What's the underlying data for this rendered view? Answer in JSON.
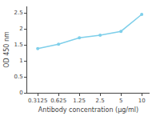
{
  "chart_data": {
    "type": "line",
    "x": [
      0.3125,
      0.625,
      1.25,
      2.5,
      5,
      10
    ],
    "values": [
      1.38,
      1.52,
      1.72,
      1.8,
      1.92,
      2.45
    ],
    "color": "#7ecfea",
    "marker": "circle",
    "log": "x",
    "xlabel": "Antibody concentration (μg/ml)",
    "ylabel": "OD 450 nm",
    "xlim": [
      0.22,
      13
    ],
    "xticks": [
      0.3125,
      0.625,
      1.25,
      2.5,
      5,
      10
    ],
    "ylim": [
      0,
      2.7
    ],
    "yticks": [
      0,
      0.5,
      1,
      1.5,
      2,
      2.5
    ],
    "grid": false
  }
}
